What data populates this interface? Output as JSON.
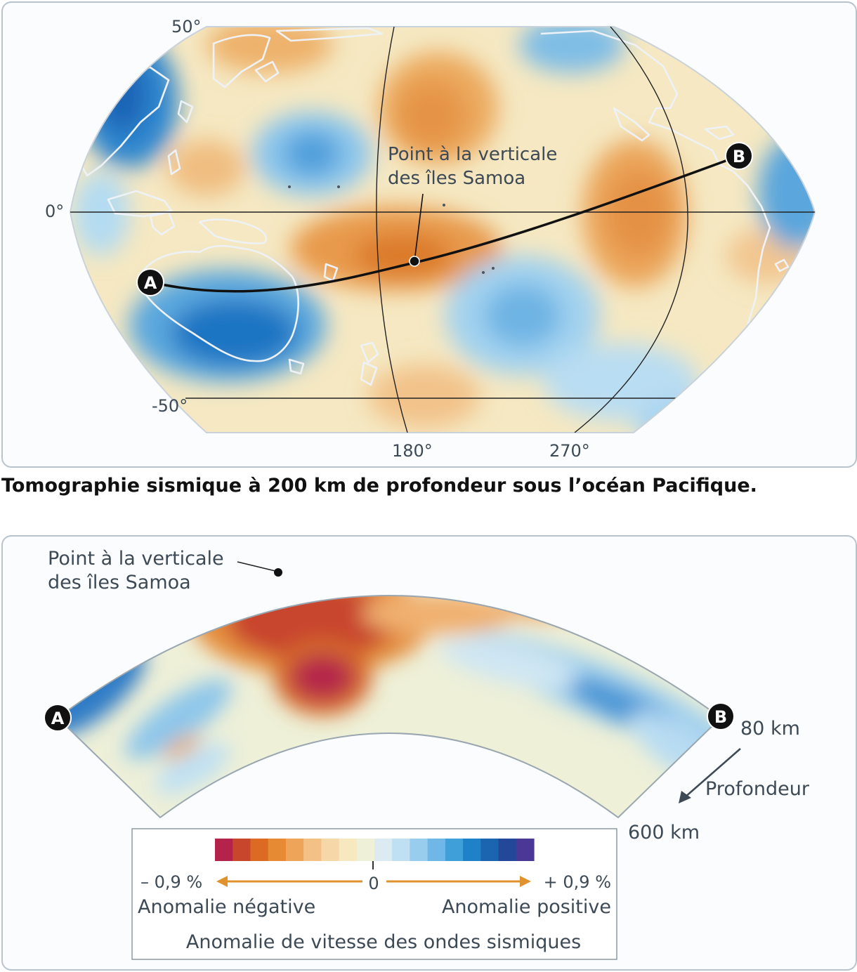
{
  "map": {
    "lat_labels": [
      "50°",
      "0°",
      "-50°"
    ],
    "lon_labels": [
      "180°",
      "270°"
    ],
    "samoa_label": [
      "Point à la verticale",
      "des îles Samoa"
    ],
    "point_a": "A",
    "point_b": "B"
  },
  "caption": "Tomographie sismique à 200 km de profondeur sous l’océan Pacifique.",
  "section": {
    "samoa_label": [
      "Point à la verticale",
      "des îles Samoa"
    ],
    "point_a": "A",
    "point_b": "B",
    "depth_top": "80 km",
    "depth_bottom": "600 km",
    "depth_label": "Profondeur"
  },
  "legend": {
    "colors": [
      "#b5234c",
      "#c8462c",
      "#dc6a23",
      "#e78a34",
      "#eea55a",
      "#f3c086",
      "#f6d7a8",
      "#f6e8bf",
      "#eef0d8",
      "#dcebf2",
      "#bfe0f3",
      "#98cdee",
      "#6fb7e6",
      "#3f9fd9",
      "#1f82c8",
      "#1a64b0",
      "#23489a",
      "#4a3796"
    ],
    "min_label": "– 0,9 %",
    "zero_label": "0",
    "max_label": "+ 0,9 %",
    "negative_label": "Anomalie négative",
    "positive_label": "Anomalie positive",
    "title": "Anomalie de vitesse des ondes sismiques"
  }
}
